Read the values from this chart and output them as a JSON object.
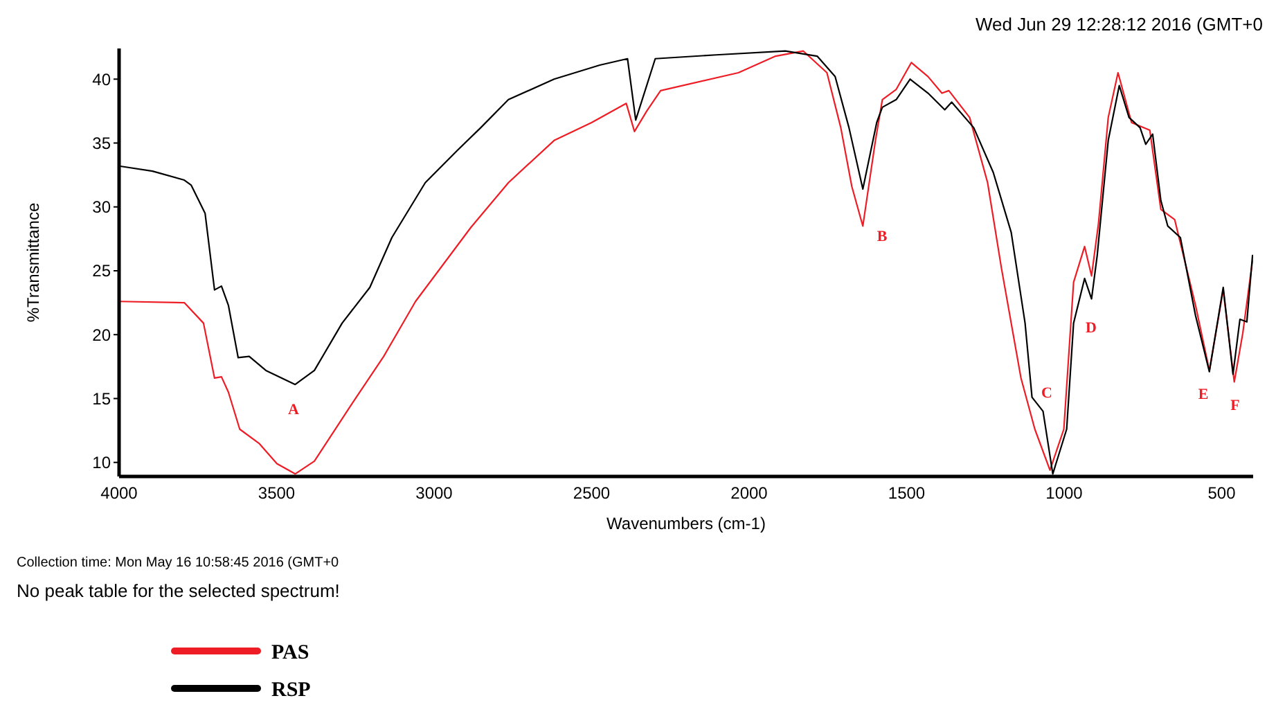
{
  "chart_data": {
    "type": "line",
    "title": "Wed Jun 29 12:28:12 2016 (GMT+0",
    "xlabel": "Wavenumbers (cm-1)",
    "ylabel": "%Transmittance",
    "xlim": [
      4000,
      400
    ],
    "ylim": [
      8.9,
      42.4
    ],
    "xticks": [
      4000,
      3500,
      3000,
      2500,
      2000,
      1500,
      1000,
      500
    ],
    "yticks": [
      10,
      15,
      20,
      25,
      30,
      35,
      40
    ],
    "legend": "bottom left",
    "series": [
      {
        "name": "PAS",
        "color": "#ee1c24",
        "x": [
          4000,
          3793,
          3732,
          3697,
          3675,
          3653,
          3617,
          3556,
          3499,
          3441,
          3380,
          3266,
          3160,
          3059,
          2971,
          2883,
          2764,
          2619,
          2500,
          2390,
          2364,
          2325,
          2281,
          2034,
          1916,
          1828,
          1753,
          1709,
          1674,
          1639,
          1599,
          1577,
          1533,
          1485,
          1432,
          1388,
          1366,
          1300,
          1243,
          1199,
          1137,
          1093,
          1045,
          1001,
          970,
          935,
          913,
          891,
          860,
          829,
          786,
          728,
          693,
          649,
          583,
          539,
          495,
          460,
          433,
          402
        ],
        "values": [
          22.6,
          22.5,
          20.9,
          16.6,
          16.7,
          15.5,
          12.6,
          11.5,
          9.9,
          9.1,
          10.1,
          14.4,
          18.3,
          22.6,
          25.5,
          28.4,
          31.9,
          35.2,
          36.6,
          38.1,
          35.9,
          37.5,
          39.1,
          40.5,
          41.8,
          42.2,
          40.5,
          36.2,
          31.6,
          28.5,
          35.2,
          38.4,
          39.2,
          41.3,
          40.2,
          38.9,
          39.1,
          37.0,
          31.9,
          25.2,
          16.6,
          12.6,
          9.4,
          12.6,
          24.1,
          26.9,
          24.6,
          28.7,
          37.0,
          40.5,
          36.6,
          36.0,
          29.8,
          29.0,
          22.3,
          17.2,
          23.5,
          16.3,
          20.1,
          25.8
        ]
      },
      {
        "name": "RSP",
        "color": "#000000",
        "x": [
          4000,
          3894,
          3793,
          3771,
          3727,
          3697,
          3675,
          3653,
          3622,
          3587,
          3534,
          3441,
          3380,
          3292,
          3204,
          3134,
          3028,
          2927,
          2852,
          2764,
          2619,
          2474,
          2386,
          2360,
          2298,
          2105,
          1885,
          1784,
          1727,
          1683,
          1639,
          1595,
          1577,
          1533,
          1489,
          1432,
          1379,
          1357,
          1287,
          1225,
          1168,
          1124,
          1102,
          1067,
          1036,
          992,
          970,
          935,
          913,
          895,
          860,
          825,
          794,
          759,
          741,
          719,
          693,
          671,
          631,
          583,
          539,
          495,
          464,
          442,
          420,
          402
        ],
        "values": [
          33.2,
          32.8,
          32.1,
          31.7,
          29.5,
          23.5,
          23.8,
          22.3,
          18.2,
          18.3,
          17.2,
          16.1,
          17.2,
          20.9,
          23.7,
          27.6,
          31.9,
          34.4,
          36.2,
          38.4,
          40.0,
          41.1,
          41.6,
          36.8,
          41.6,
          41.9,
          42.2,
          41.8,
          40.2,
          36.2,
          31.4,
          36.6,
          37.8,
          38.4,
          40.0,
          38.9,
          37.6,
          38.2,
          36.2,
          32.7,
          28.0,
          20.9,
          15.1,
          14.0,
          9.1,
          12.6,
          20.9,
          24.4,
          22.8,
          26.2,
          35.2,
          39.5,
          37.0,
          36.2,
          34.9,
          35.7,
          30.5,
          28.5,
          27.6,
          21.5,
          17.1,
          23.7,
          16.9,
          21.2,
          21.0,
          26.2
        ]
      }
    ],
    "annotations": [
      "A",
      "B",
      "C",
      "D",
      "E",
      "F",
      "Collection time: Mon May 16 10:58:45 2016 (GMT+0",
      "No peak table for the selected spectrum!"
    ]
  }
}
